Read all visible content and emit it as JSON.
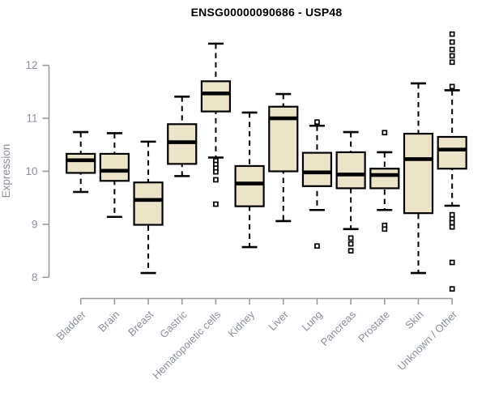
{
  "chart_data": {
    "type": "boxplot",
    "title": "ENSG00000090686 - USP48",
    "ylabel": "Expression",
    "xlabel": "",
    "ylim": [
      8,
      12
    ],
    "yticks": [
      8,
      9,
      10,
      11,
      12
    ],
    "grid": false,
    "legend": "none",
    "categories": [
      "Bladder",
      "Brain",
      "Breast",
      "Gastric",
      "Hematopoietic cells",
      "Kidney",
      "Liver",
      "Lung",
      "Pancreas",
      "Prostate",
      "Skin",
      "Unknown / Other"
    ],
    "boxes": [
      {
        "category": "Bladder",
        "whisker_low": 9.61,
        "q1": 9.97,
        "median": 10.21,
        "q3": 10.33,
        "whisker_high": 10.74,
        "outliers": []
      },
      {
        "category": "Brain",
        "whisker_low": 9.14,
        "q1": 9.82,
        "median": 10.01,
        "q3": 10.33,
        "whisker_high": 10.72,
        "outliers": []
      },
      {
        "category": "Breast",
        "whisker_low": 8.08,
        "q1": 8.99,
        "median": 9.46,
        "q3": 9.79,
        "whisker_high": 10.56,
        "outliers": []
      },
      {
        "category": "Gastric",
        "whisker_low": 9.91,
        "q1": 10.14,
        "median": 10.55,
        "q3": 10.89,
        "whisker_high": 11.41,
        "outliers": []
      },
      {
        "category": "Hematopoietic cells",
        "whisker_low": 10.26,
        "q1": 11.13,
        "median": 11.47,
        "q3": 11.7,
        "whisker_high": 12.41,
        "outliers": [
          10.2,
          10.13,
          10.06,
          9.99,
          9.84,
          9.38
        ]
      },
      {
        "category": "Kidney",
        "whisker_low": 8.57,
        "q1": 9.34,
        "median": 9.77,
        "q3": 10.1,
        "whisker_high": 11.11,
        "outliers": []
      },
      {
        "category": "Liver",
        "whisker_low": 9.06,
        "q1": 10.0,
        "median": 11.0,
        "q3": 11.22,
        "whisker_high": 11.46,
        "outliers": []
      },
      {
        "category": "Lung",
        "whisker_low": 9.27,
        "q1": 9.72,
        "median": 9.98,
        "q3": 10.35,
        "whisker_high": 10.86,
        "outliers": [
          10.93,
          8.59
        ]
      },
      {
        "category": "Pancreas",
        "whisker_low": 8.91,
        "q1": 9.68,
        "median": 9.94,
        "q3": 10.36,
        "whisker_high": 10.74,
        "outliers": [
          8.74,
          8.63,
          8.5
        ]
      },
      {
        "category": "Prostate",
        "whisker_low": 9.27,
        "q1": 9.68,
        "median": 9.93,
        "q3": 10.05,
        "whisker_high": 10.36,
        "outliers": [
          10.73,
          8.98,
          8.91
        ]
      },
      {
        "category": "Skin",
        "whisker_low": 8.08,
        "q1": 9.21,
        "median": 10.23,
        "q3": 10.71,
        "whisker_high": 11.66,
        "outliers": []
      },
      {
        "category": "Unknown / Other",
        "whisker_low": 9.35,
        "q1": 10.05,
        "median": 10.41,
        "q3": 10.65,
        "whisker_high": 11.53,
        "outliers": [
          12.59,
          12.44,
          12.3,
          12.18,
          12.06,
          11.6,
          9.18,
          9.1,
          9.03,
          8.95,
          8.28,
          7.78
        ]
      }
    ],
    "colors": {
      "box_fill": "#ece4c9",
      "box_border": "#000000",
      "median": "#000000",
      "whisker": "#000000",
      "outlier_fill": "#ffffff",
      "axis": "#9a9a9a",
      "tick_text": "#8b909b",
      "title_text": "#000000"
    }
  }
}
